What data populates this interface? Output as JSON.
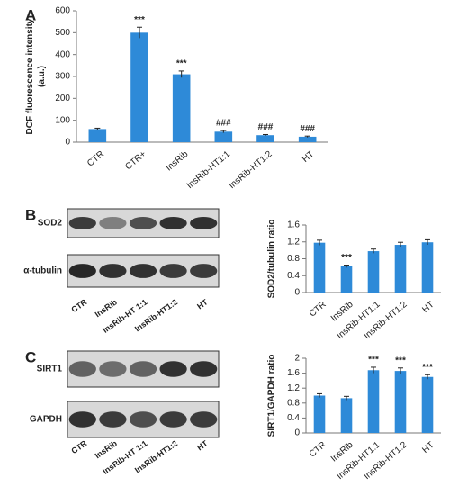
{
  "panels": [
    "A",
    "B",
    "C"
  ],
  "blots": [
    {
      "rows": [
        "SOD2",
        "α-tubulin"
      ],
      "lanes": [
        "CTR",
        "InsRib",
        "InsRib-HT 1:1",
        "InsRib-HT1:2",
        "HT"
      ]
    },
    {
      "rows": [
        "SIRT1",
        "GAPDH"
      ],
      "lanes": [
        "CTR",
        "InsRib",
        "InsRib-HT 1:1",
        "InsRib-HT1:2",
        "HT"
      ]
    }
  ],
  "chart_data": [
    {
      "type": "bar",
      "y_label_lines": [
        "DCF fluorescence intensity",
        "(a.u.)"
      ],
      "categories": [
        "CTR",
        "CTR+",
        "InsRib",
        "InsRib-HT1:1",
        "InsRib-HT1:2",
        "HT"
      ],
      "values": [
        60,
        500,
        310,
        48,
        32,
        25
      ],
      "errors": [
        4,
        25,
        15,
        5,
        3,
        3
      ],
      "annotations": [
        null,
        "***",
        "***",
        "###",
        "###",
        "###"
      ],
      "color": "#2e8ad8",
      "ylim": [
        0,
        600
      ],
      "yticks": [
        0,
        100,
        200,
        300,
        400,
        500,
        600
      ]
    },
    {
      "type": "bar",
      "y_label_lines": [
        "SOD2/tubulin ratio"
      ],
      "categories": [
        "CTR",
        "InsRib",
        "InsRib-HT1:1",
        "InsRib-HT1:2",
        "HT"
      ],
      "values": [
        1.18,
        0.62,
        0.98,
        1.13,
        1.19
      ],
      "errors": [
        0.06,
        0.03,
        0.05,
        0.06,
        0.06
      ],
      "annotations": [
        null,
        "***",
        null,
        null,
        null
      ],
      "color": "#2e8ad8",
      "ylim": [
        0,
        1.6
      ],
      "yticks": [
        0,
        0.4,
        0.8,
        1.2,
        1.6
      ]
    },
    {
      "type": "bar",
      "y_label_lines": [
        "SIRT1/GAPDH ratio"
      ],
      "categories": [
        "CTR",
        "InsRib",
        "InsRib-HT1:1",
        "InsRib-HT1:2",
        "HT"
      ],
      "values": [
        1.0,
        0.93,
        1.68,
        1.66,
        1.5
      ],
      "errors": [
        0.05,
        0.05,
        0.08,
        0.08,
        0.06
      ],
      "annotations": [
        null,
        null,
        "***",
        "***",
        "***"
      ],
      "color": "#2e8ad8",
      "ylim": [
        0,
        2
      ],
      "yticks": [
        0,
        0.4,
        0.8,
        1.2,
        1.6,
        2
      ]
    }
  ]
}
